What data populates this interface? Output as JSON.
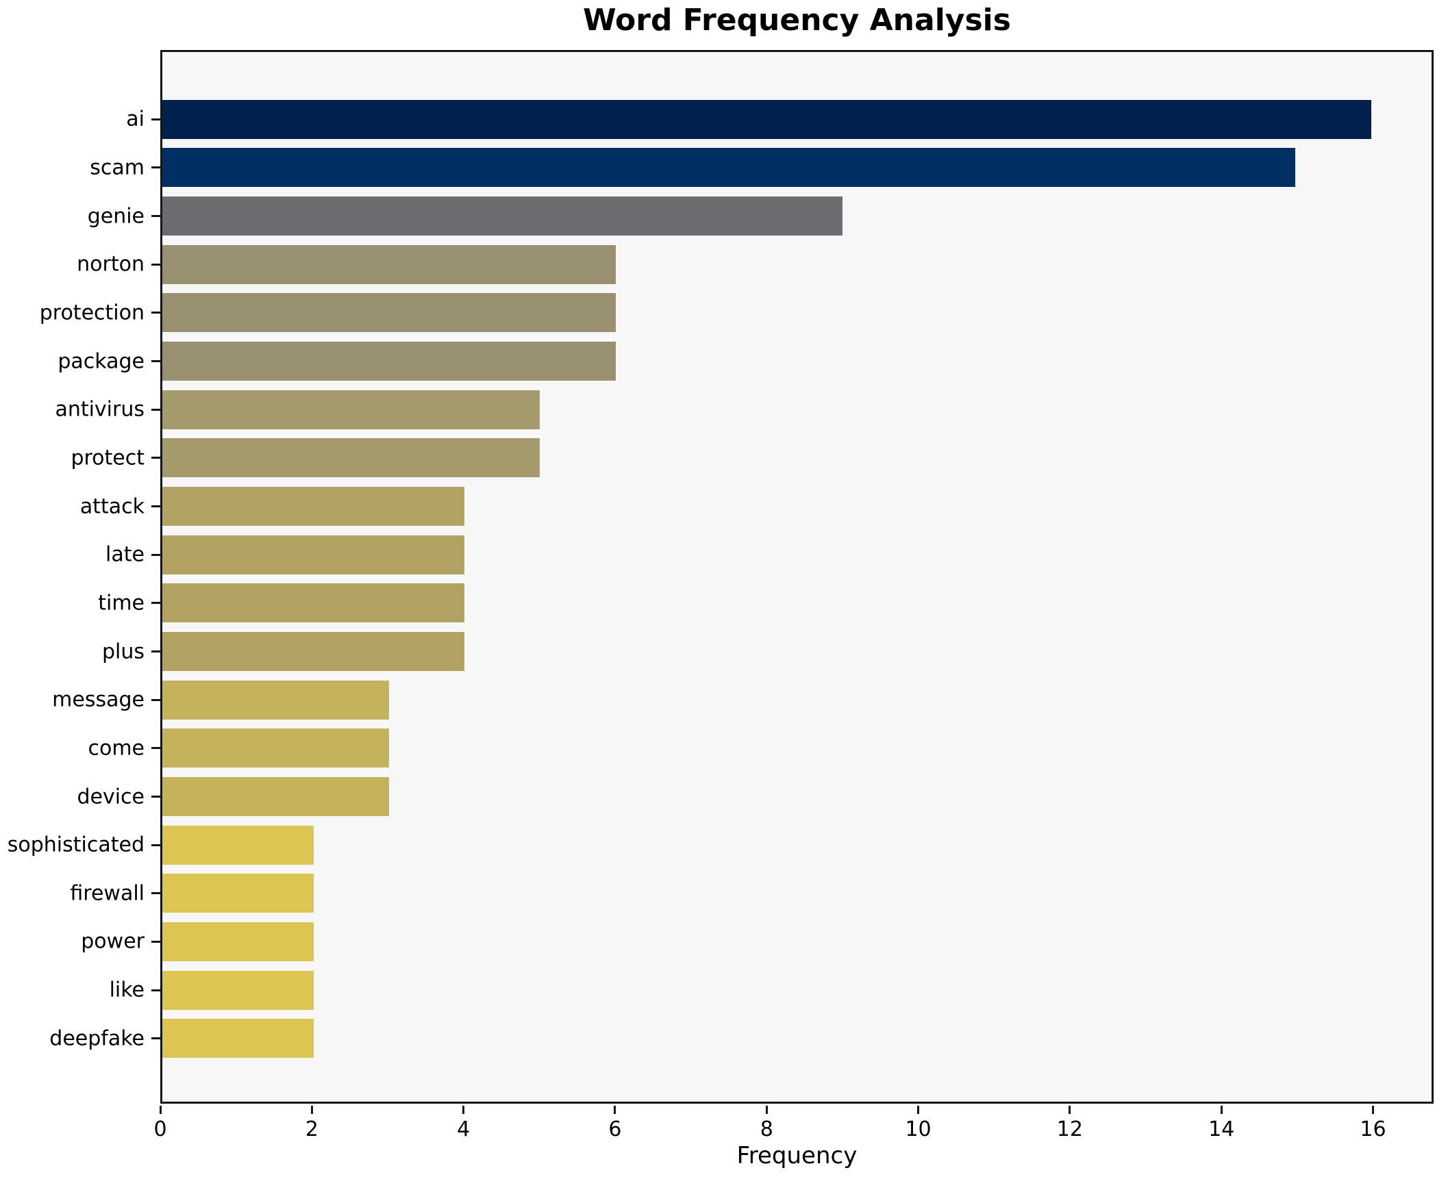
{
  "chart_data": {
    "type": "bar",
    "orientation": "horizontal",
    "title": "Word Frequency Analysis",
    "xlabel": "Frequency",
    "ylabel": "",
    "xlim": [
      0,
      16.8
    ],
    "x_ticks": [
      0,
      2,
      4,
      6,
      8,
      10,
      12,
      14,
      16
    ],
    "grid": false,
    "legend": "none",
    "categories": [
      "ai",
      "scam",
      "genie",
      "norton",
      "protection",
      "package",
      "antivirus",
      "protect",
      "attack",
      "late",
      "time",
      "plus",
      "message",
      "come",
      "device",
      "sophisticated",
      "firewall",
      "power",
      "like",
      "deepfake"
    ],
    "values": [
      16,
      15,
      9,
      6,
      6,
      6,
      5,
      5,
      4,
      4,
      4,
      4,
      3,
      3,
      3,
      2,
      2,
      2,
      2,
      2
    ],
    "bar_colors": [
      "#00214d",
      "#002f63",
      "#6c6d71",
      "#99906f",
      "#99906f",
      "#99906f",
      "#a49a6c",
      "#a49a6c",
      "#b2a363",
      "#b2a363",
      "#b2a363",
      "#b2a363",
      "#c4b35b",
      "#c4b35b",
      "#c4b35b",
      "#dcc551",
      "#dcc551",
      "#dcc551",
      "#dcc551",
      "#dcc551"
    ],
    "colors": {
      "figure_background": "#ffffff",
      "plot_background": "#f7f7f7",
      "spine": "#15161a",
      "text": "#000000"
    }
  }
}
